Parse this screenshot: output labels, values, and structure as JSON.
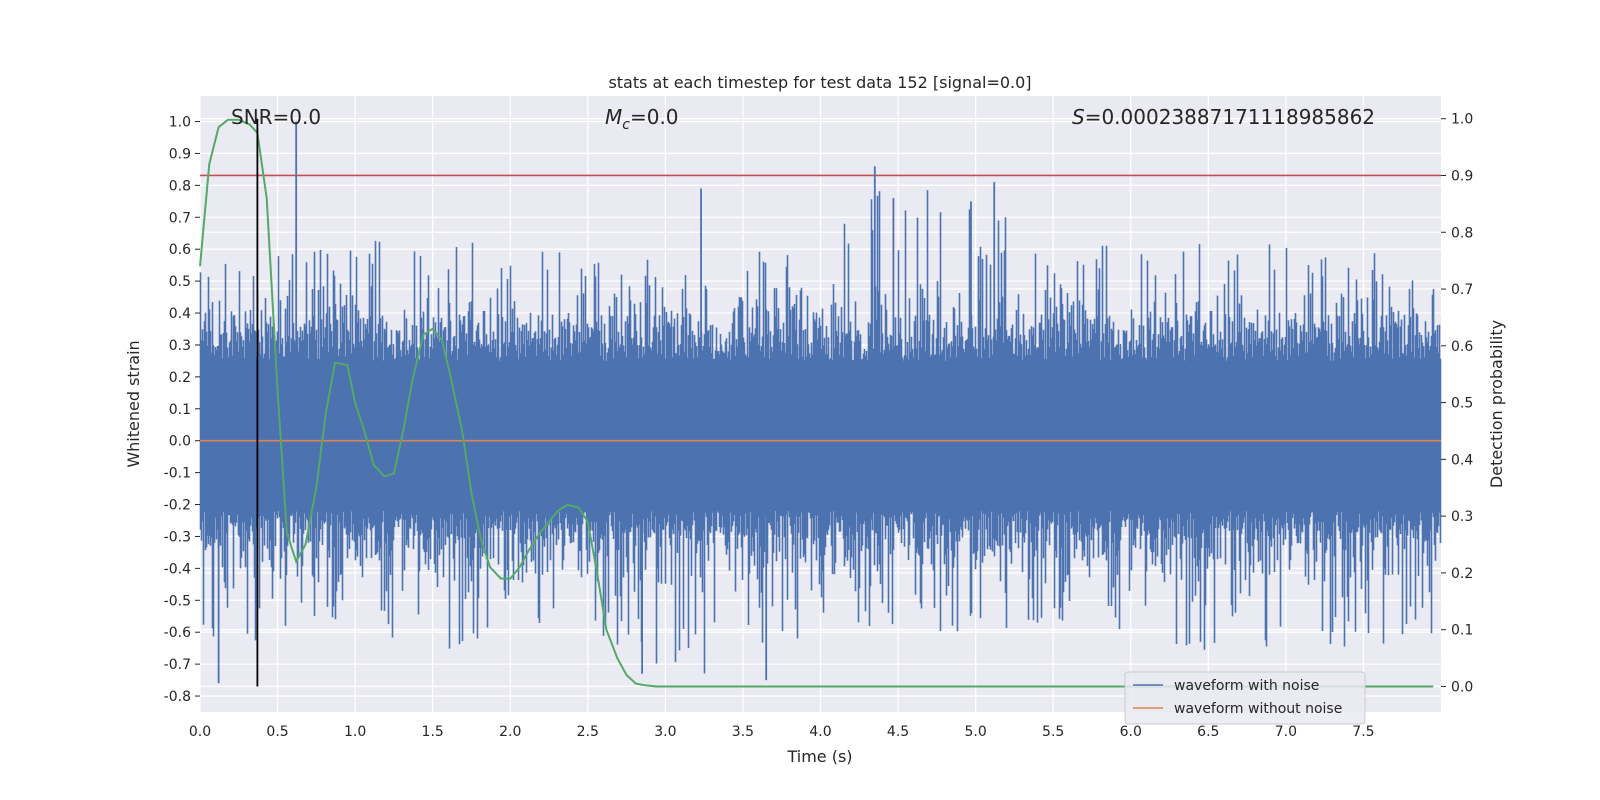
{
  "chart_data": {
    "type": "line",
    "title": "stats at each timestep for test data 152 [signal=0.0]",
    "xlabel": "Time (s)",
    "ylabel_left": "Whitened strain",
    "ylabel_right": "Detection probability",
    "xlim": [
      0.0,
      8.0
    ],
    "ylim_left": [
      -0.85,
      1.08
    ],
    "ylim_right": [
      -0.045,
      1.04
    ],
    "x_ticks": [
      "0.0",
      "0.5",
      "1.0",
      "1.5",
      "2.0",
      "2.5",
      "3.0",
      "3.5",
      "4.0",
      "4.5",
      "5.0",
      "5.5",
      "6.0",
      "6.5",
      "7.0",
      "7.5"
    ],
    "y_left_ticks": [
      "-0.8",
      "-0.7",
      "-0.6",
      "-0.5",
      "-0.4",
      "-0.3",
      "-0.2",
      "-0.1",
      "0.0",
      "0.1",
      "0.2",
      "0.3",
      "0.4",
      "0.5",
      "0.6",
      "0.7",
      "0.8",
      "0.9",
      "1.0"
    ],
    "y_right_ticks": [
      "0.0",
      "0.1",
      "0.2",
      "0.3",
      "0.4",
      "0.5",
      "0.6",
      "0.7",
      "0.8",
      "0.9",
      "1.0"
    ],
    "grid": true,
    "legend_position": "bottom-right",
    "annotations": {
      "snr": "SNR=0.0",
      "mc_symbol": "M",
      "mc_sub": "c",
      "mc_value": "=0.0",
      "s_symbol": "S",
      "s_value": "=0.00023887171118985862"
    },
    "threshold_right": 0.9,
    "marker_time": 0.37,
    "series": [
      {
        "name": "waveform with noise",
        "color": "#4c72b0",
        "axis": "left",
        "sample_rate": 2048,
        "envelope": {
          "x": [
            0.0,
            0.5,
            1.0,
            1.5,
            2.0,
            2.5,
            3.0,
            3.5,
            4.0,
            4.5,
            5.0,
            5.5,
            6.0,
            6.5,
            7.0,
            7.5,
            8.0
          ],
          "upper": [
            0.55,
            0.62,
            0.62,
            0.68,
            0.58,
            0.62,
            0.62,
            0.6,
            0.6,
            0.86,
            0.8,
            0.55,
            0.66,
            0.62,
            0.62,
            0.66,
            0.55
          ],
          "lower": [
            -0.76,
            -0.6,
            -0.62,
            -0.68,
            -0.58,
            -0.62,
            -0.72,
            -0.75,
            -0.6,
            -0.62,
            -0.6,
            -0.62,
            -0.62,
            -0.66,
            -0.68,
            -0.66,
            -0.6
          ]
        },
        "spikes": [
          {
            "x": 0.62,
            "y": 1.0
          },
          {
            "x": 4.35,
            "y": 0.86
          },
          {
            "x": 5.12,
            "y": 0.81
          },
          {
            "x": 3.23,
            "y": 0.79
          },
          {
            "x": 4.47,
            "y": 0.76
          },
          {
            "x": 4.97,
            "y": 0.75
          },
          {
            "x": 0.12,
            "y": -0.76
          },
          {
            "x": 3.65,
            "y": -0.75
          },
          {
            "x": 2.85,
            "y": -0.73
          }
        ]
      },
      {
        "name": "waveform without noise",
        "color": "#dd8452",
        "axis": "left",
        "x": [
          0.0,
          8.0
        ],
        "y": [
          0.0,
          0.0
        ]
      },
      {
        "name": "",
        "color": "#55a868",
        "axis": "right",
        "x": [
          0.0,
          0.06,
          0.12,
          0.18,
          0.25,
          0.32,
          0.37,
          0.43,
          0.5,
          0.56,
          0.62,
          0.68,
          0.75,
          0.81,
          0.87,
          0.95,
          1.0,
          1.06,
          1.12,
          1.19,
          1.25,
          1.31,
          1.37,
          1.44,
          1.5,
          1.56,
          1.62,
          1.69,
          1.75,
          1.81,
          1.87,
          1.94,
          2.0,
          2.06,
          2.12,
          2.19,
          2.25,
          2.31,
          2.37,
          2.44,
          2.5,
          2.56,
          2.62,
          2.69,
          2.75,
          2.81,
          2.87,
          2.94,
          3.0,
          3.5,
          4.0,
          5.0,
          6.0,
          7.0,
          7.95
        ],
        "y": [
          0.74,
          0.92,
          0.985,
          0.998,
          0.998,
          0.99,
          0.975,
          0.86,
          0.52,
          0.27,
          0.22,
          0.25,
          0.35,
          0.48,
          0.57,
          0.566,
          0.5,
          0.45,
          0.39,
          0.37,
          0.375,
          0.45,
          0.54,
          0.62,
          0.63,
          0.61,
          0.54,
          0.45,
          0.34,
          0.26,
          0.21,
          0.19,
          0.19,
          0.21,
          0.24,
          0.27,
          0.29,
          0.31,
          0.32,
          0.315,
          0.29,
          0.2,
          0.1,
          0.05,
          0.02,
          0.005,
          0.002,
          0.0,
          0.0,
          0.0,
          0.0,
          0.0,
          0.0,
          0.0,
          0.0
        ]
      }
    ]
  }
}
